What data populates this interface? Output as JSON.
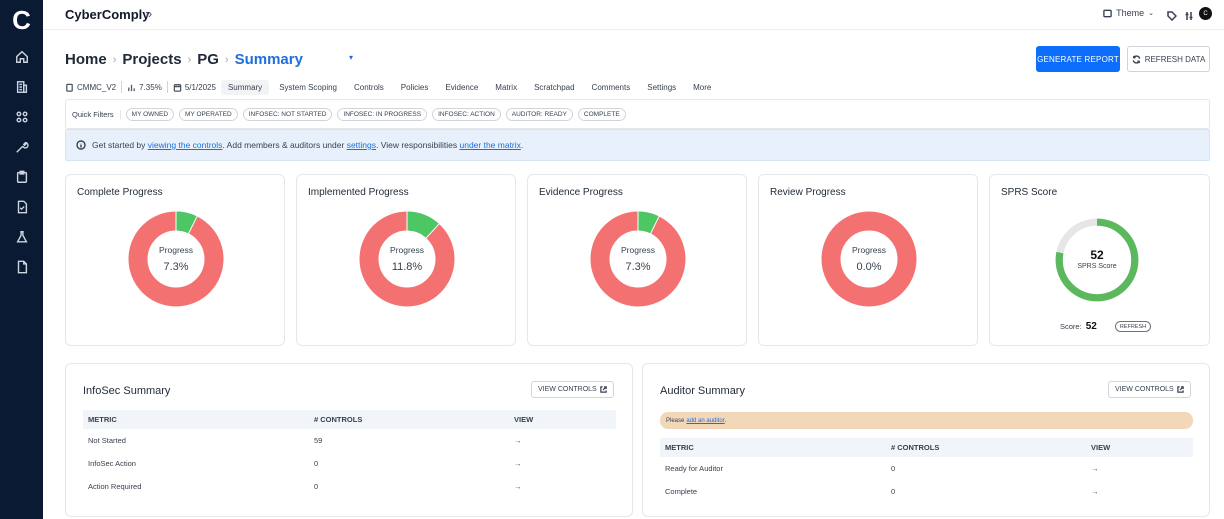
{
  "app": {
    "logo_letter": "C",
    "brand": "CyberComply",
    "collapse": "»",
    "theme": "Theme",
    "avatar": "C"
  },
  "breadcrumb": {
    "home": "Home",
    "projects": "Projects",
    "project": "PG",
    "current": "Summary",
    "caret": "▾"
  },
  "actions": {
    "generate": "GENERATE REPORT",
    "refresh": "REFRESH DATA"
  },
  "meta": {
    "framework": "CMMC_V2",
    "percent": "7.35%",
    "date": "5/1/2025"
  },
  "tabs": [
    "Summary",
    "System Scoping",
    "Controls",
    "Policies",
    "Evidence",
    "Matrix",
    "Scratchpad",
    "Comments",
    "Settings",
    "More"
  ],
  "quick_filters": {
    "label": "Quick Filters",
    "chips": [
      "MY OWNED",
      "MY OPERATED",
      "INFOSEC: NOT STARTED",
      "INFOSEC: IN PROGRESS",
      "INFOSEC: ACTION",
      "AUDITOR: READY",
      "COMPLETE"
    ]
  },
  "info": {
    "t1": "Get started by",
    "l1": "viewing the controls",
    "t2": ". Add members & auditors under",
    "l2": "settings",
    "t3": ". View responsibilities",
    "l3": "under the matrix",
    "t4": "."
  },
  "progress_cards": [
    {
      "title": "Complete Progress",
      "label": "Progress",
      "value": "7.3%",
      "fraction": 0.073
    },
    {
      "title": "Implemented Progress",
      "label": "Progress",
      "value": "11.8%",
      "fraction": 0.118
    },
    {
      "title": "Evidence Progress",
      "label": "Progress",
      "value": "7.3%",
      "fraction": 0.073
    },
    {
      "title": "Review Progress",
      "label": "Progress",
      "value": "0.0%",
      "fraction": 0.0
    }
  ],
  "sprs": {
    "title": "SPRS Score",
    "value": "52",
    "sub": "SPRS Score",
    "score_label": "Score:",
    "score": "52",
    "refresh": "REFRESH",
    "fraction": 0.78
  },
  "colors": {
    "red": "#f47171",
    "green": "#4cc763",
    "sprs_green": "#5cb85c",
    "track": "#e6e6e6"
  },
  "infosec": {
    "title": "InfoSec Summary",
    "view": "VIEW CONTROLS",
    "headers": [
      "METRIC",
      "# CONTROLS",
      "VIEW"
    ],
    "rows": [
      {
        "metric": "Not Started",
        "count": "59",
        "arrow": "→"
      },
      {
        "metric": "InfoSec Action",
        "count": "0",
        "arrow": "→"
      },
      {
        "metric": "Action Required",
        "count": "0",
        "arrow": "→"
      }
    ]
  },
  "auditor": {
    "title": "Auditor Summary",
    "view": "VIEW CONTROLS",
    "notice": "Please",
    "notice_link": "add an auditor",
    "notice_end": ".",
    "headers": [
      "METRIC",
      "# CONTROLS",
      "VIEW"
    ],
    "rows": [
      {
        "metric": "Ready for Auditor",
        "count": "0",
        "arrow": "→"
      },
      {
        "metric": "Complete",
        "count": "0",
        "arrow": "→"
      }
    ]
  }
}
